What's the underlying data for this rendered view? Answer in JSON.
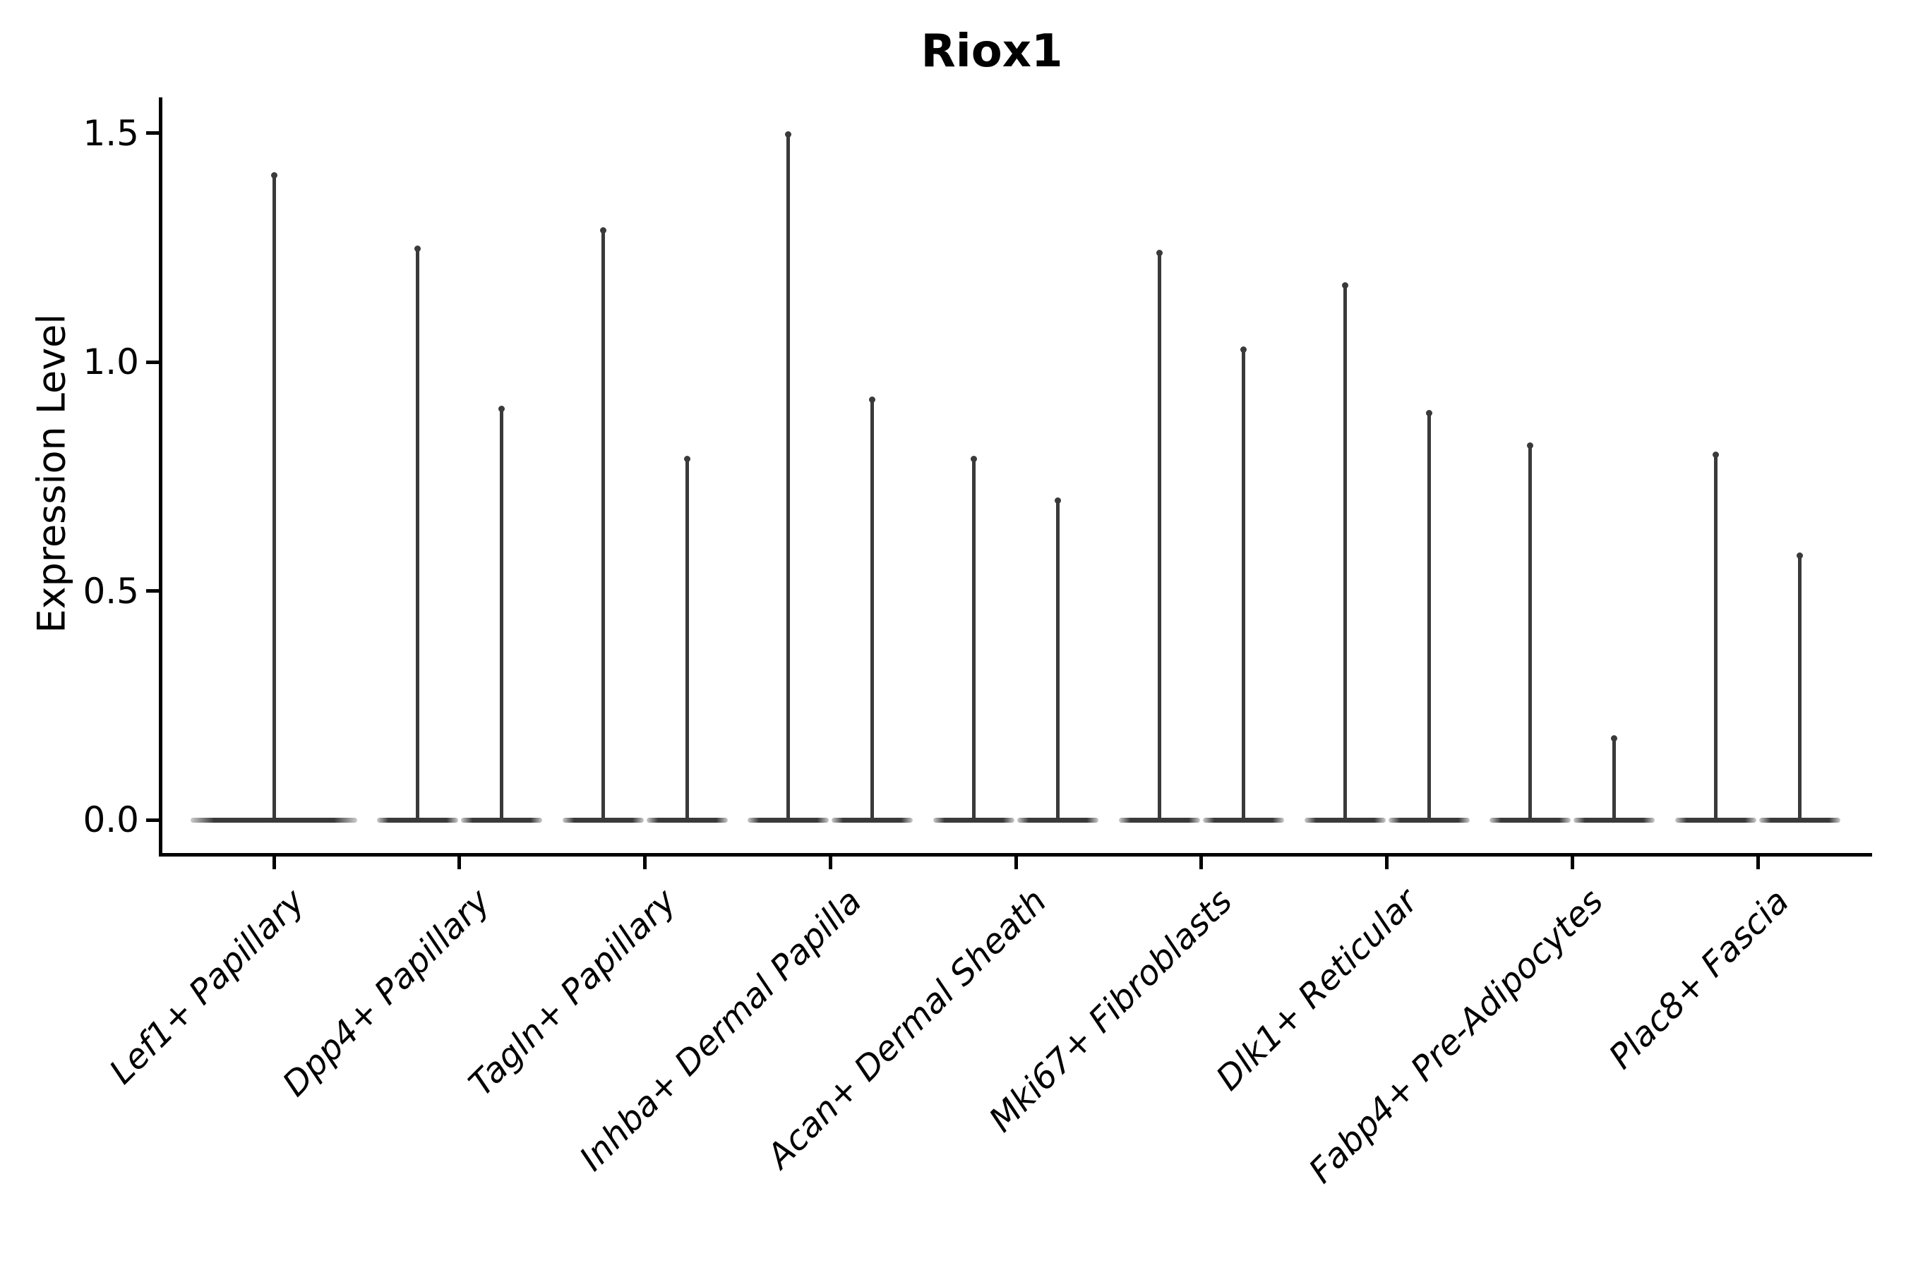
{
  "chart_data": {
    "type": "violin",
    "title": "Riox1",
    "xlabel": "",
    "ylabel": "Expression Level",
    "ylim": [
      0,
      1.5
    ],
    "y_ticks": [
      0.0,
      0.5,
      1.0,
      1.5
    ],
    "y_tick_labels": [
      "0.0",
      "0.5",
      "1.0",
      "1.5"
    ],
    "x_tick_rotation_deg": 45,
    "grid": false,
    "legend": "none",
    "violin_shape": "zero-inflated spike: density mass concentrated at 0 with a thin vertical spike up to the maximum expression value",
    "colors": {
      "violin_stroke": "#3a3a3a",
      "axis": "#000000",
      "text": "#000000",
      "background": "#ffffff"
    },
    "categories": [
      "Lef1+ Papillary",
      "Dpp4+ Papillary",
      "Tagln+ Papillary",
      "Inhba+ Dermal Papilla",
      "Acan+ Dermal Sheath",
      "Mki67+ Fibroblasts",
      "Dlk1+ Reticular",
      "Fabp4+ Pre-Adipocytes",
      "Plac8+ Fascia"
    ],
    "violins": [
      {
        "category": "Lef1+ Papillary",
        "max_values": [
          1.41
        ]
      },
      {
        "category": "Dpp4+ Papillary",
        "max_values": [
          1.25,
          0.9
        ]
      },
      {
        "category": "Tagln+ Papillary",
        "max_values": [
          1.29,
          0.79
        ]
      },
      {
        "category": "Inhba+ Dermal Papilla",
        "max_values": [
          1.5,
          0.92
        ]
      },
      {
        "category": "Acan+ Dermal Sheath",
        "max_values": [
          0.79,
          0.7
        ]
      },
      {
        "category": "Mki67+ Fibroblasts",
        "max_values": [
          1.24,
          1.03
        ]
      },
      {
        "category": "Dlk1+ Reticular",
        "max_values": [
          1.17,
          0.89
        ]
      },
      {
        "category": "Fabp4+ Pre-Adipocytes",
        "max_values": [
          0.82,
          0.18
        ]
      },
      {
        "category": "Plac8+ Fascia",
        "max_values": [
          0.8,
          0.58
        ]
      }
    ]
  }
}
